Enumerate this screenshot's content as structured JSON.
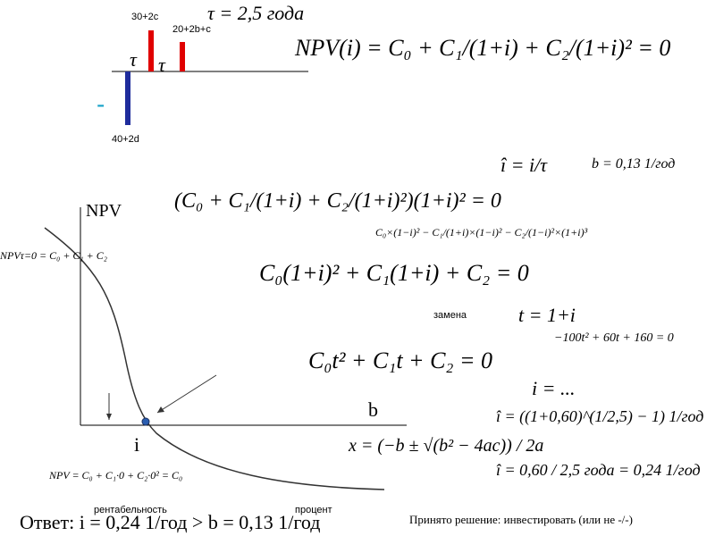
{
  "cash_flow": {
    "inflow_1": "30+2c",
    "inflow_2": "20+2b+c",
    "outflow": "40+2d",
    "minus": "-",
    "tau_1": "τ",
    "tau_2": "τ",
    "duration": "τ = 2,5 года"
  },
  "formulas": {
    "npv": "NPV(i) = C₀ + C₁/(1+i) + C₂/(1+i)² = 0",
    "i_hat": "î = i/τ",
    "b_value": "b = 0,13 1/год",
    "multiplied": "(C₀ + C₁/(1+i) + C₂/(1+i)²)(1+i)² = 0",
    "expanded": "C₀×(1−i)² − C₁/(1+i)×(1−i)² − C₂/(1−i)²×(1+i)³",
    "quadratic_i": "C₀(1+i)² + C₁(1+i) + C₂ = 0",
    "substitution_note": "замена",
    "substitution": "t = 1+i",
    "numeric": "−100t² + 60t + 160 = 0",
    "quadratic_t": "C₀t² + C₁t + C₂ = 0",
    "i_dots": "i = ...",
    "i_hat_root": "î = ((1+0,60)^(1/2,5) − 1) 1/год",
    "roots": "x = (−b ± √(b² − 4ac)) / 2a",
    "i_hat_result": "î = 0,60 / 2,5 года = 0,24 1/год"
  },
  "graph": {
    "y_label": "NPV",
    "x_label": "b",
    "root_label": "i",
    "npv_at_zero": "NPVτ=0 = C₀ + C₁ + C₂",
    "npv_note": "NPV = C₀ + C₁·0 + C₂·0² = C₀"
  },
  "footer": {
    "profitability": "рентабельность",
    "percent": "процент",
    "answer": "Ответ: i = 0,24 1/год > b = 0,13 1/год",
    "decision": "Принято решение: инвестировать (или не -/-)"
  }
}
